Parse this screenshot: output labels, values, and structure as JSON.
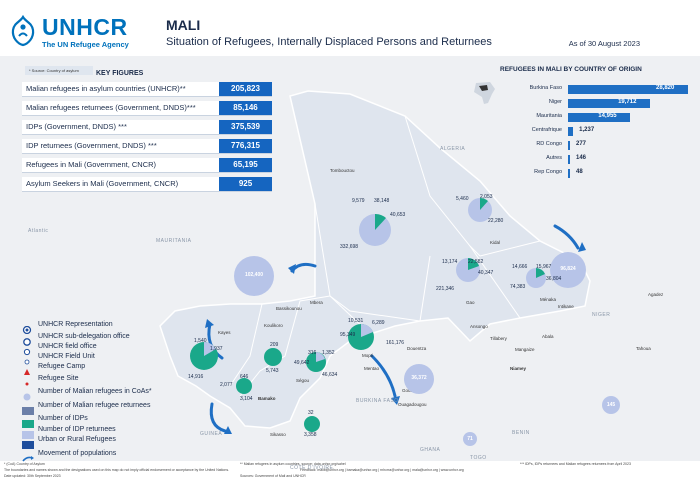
{
  "header": {
    "logo_word": "UNHCR",
    "logo_sub": "The UN Refugee Agency",
    "title": "MALI",
    "subtitle": "Situation of Refugees, Internally Displaced Persons and Returnees",
    "as_of": "As of 30 August 2023"
  },
  "key_figures": {
    "note": "* Source: Country of asylum",
    "title": "KEY FIGURES",
    "rows": [
      {
        "label": "Malian refugees in asylum countries (UNHCR)**",
        "value": "205,823"
      },
      {
        "label": "Malian refugees returnees (Government, DNDS)***",
        "value": "85,146"
      },
      {
        "label": "IDPs (Government, DNDS) ***",
        "value": "375,539"
      },
      {
        "label": "IDP returnees (Government, DNDS) ***",
        "value": "776,315"
      },
      {
        "label": "Refugees in Mali (Government,  CNCR)",
        "value": "65,195"
      },
      {
        "label": "Asylum Seekers in Mali (Government, CNCR)",
        "value": "925"
      }
    ]
  },
  "origin": {
    "title": "REFUGEES IN MALI BY COUNTRY OF ORIGIN",
    "rows": [
      {
        "label": "Burkina Faso",
        "value": "28,820",
        "num": 28820
      },
      {
        "label": "Niger",
        "value": "19,712",
        "num": 19712
      },
      {
        "label": "Mauritania",
        "value": "14,955",
        "num": 14955
      },
      {
        "label": "Centrafrique",
        "value": "1,237",
        "num": 1237
      },
      {
        "label": "RD Congo",
        "value": "277",
        "num": 277
      },
      {
        "label": "Autres",
        "value": "146",
        "num": 146
      },
      {
        "label": "Rep Congo",
        "value": "48",
        "num": 48
      }
    ]
  },
  "legend": [
    {
      "label": "UNHCR Representation",
      "icon": "unhcr-representation-icon"
    },
    {
      "label": "UNHCR sub-delegation office",
      "icon": "sub-delegation-icon"
    },
    {
      "label": "UNHCR field office",
      "icon": "field-office-icon"
    },
    {
      "label": "UNHCR Field Unit",
      "icon": "field-unit-icon"
    },
    {
      "label": "Refugee Camp",
      "icon": "refugee-camp-icon"
    },
    {
      "label": "Refugee Site",
      "icon": "refugee-site-icon"
    },
    {
      "label": "Number of Malian refugees in CoAs*",
      "icon": "coa-refugees-circle-icon"
    },
    {
      "label": "Number of Malian refugee returnees",
      "icon": "returnees-swatch"
    },
    {
      "label": "Number of IDPs",
      "icon": "idps-swatch"
    },
    {
      "label": "Number of IDP returnees",
      "icon": "idp-returnees-swatch"
    },
    {
      "label": "Urban or Rural Refugees",
      "icon": "urban-rural-swatch"
    },
    {
      "label": "Movement of populations",
      "icon": "movement-arrow-icon"
    }
  ],
  "colors": {
    "brand": "#0072bc",
    "bar": "#1f6fc4",
    "idp_returnees": "#b7c4e8",
    "idps": "#1aa88a",
    "returnees": "#6b7fa8",
    "urban": "#1f4e9c",
    "mali_fill": "#dfe5ee"
  },
  "map": {
    "countries": [
      "ALGERIA",
      "MAURITANIA",
      "NIGER",
      "BURKINA FASO",
      "GUINEA",
      "CÔTE D'IVOIRE",
      "GHANA",
      "BENIN",
      "TOGO",
      "Atlantic"
    ],
    "regions": [
      "Tombouctou",
      "Kidal",
      "Gao",
      "Ménaka",
      "Mopti",
      "Ségou",
      "Koulikoro",
      "Kayes",
      "Sikasso",
      "Bamako",
      "Nioro",
      "Djenné",
      "Gourma Rharous"
    ],
    "places": [
      "Mbera",
      "Bassikounou",
      "Mentao",
      "Goudoubo",
      "Ouagadougou",
      "Niamey",
      "Tillabery",
      "Mangaize",
      "Abala",
      "Intikane",
      "Agadez",
      "Tahoua",
      "Ansongo",
      "Douentza",
      "Tin Hama"
    ],
    "bubbles": [
      {
        "value": "102,400"
      },
      {
        "value": "36,372"
      },
      {
        "value": "96,824"
      },
      {
        "value": "145"
      },
      {
        "value": "71"
      }
    ],
    "numbers": [
      "9,579",
      "38,148",
      "40,653",
      "332,698",
      "5,460",
      "2,053",
      "22,280",
      "13,174",
      "22,582",
      "40,347",
      "221,346",
      "14,666",
      "15,967",
      "36,804",
      "74,383",
      "10,531",
      "6,289",
      "161,176",
      "95,349",
      "1,352",
      "46,634",
      "49,642",
      "316",
      "209",
      "5,743",
      "2,077",
      "3,104",
      "646",
      "1,540",
      "1,937",
      "14,916",
      "32",
      "3,358"
    ]
  },
  "footer": {
    "line1": "* (CoA) Country of Asylum",
    "line2": "** Malian refugees in asylum countries, source: data.unhcr.org/sahel",
    "line3": "*** IDPs, IDPs returnees and Malian refugees returnees from April 2023",
    "line4": "The boundaries and names shown and the designations used on this map do not imply official endorsement or acceptance by the United Nations.",
    "line5": "Feedback: malib@unhcr.org  |  bamaka@unhcr.org  |  rnhcrra@unhcr.org  |  mala@unhcr.org  |  www.unhcr.org",
    "line6": "Date updated: 30th September 2023",
    "line7": "Sources: Government of Mali and UNHCR"
  }
}
